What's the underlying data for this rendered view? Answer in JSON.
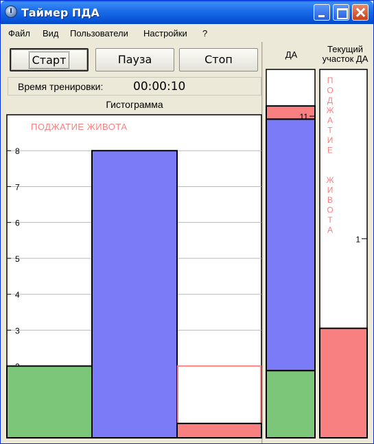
{
  "window": {
    "title": "Таймер ПДА"
  },
  "menu": [
    "Файл",
    "Вид",
    "Пользователи",
    "Настройки",
    "?"
  ],
  "controls": {
    "start": "Старт",
    "pause": "Пауза",
    "stop": "Стоп"
  },
  "timer": {
    "label": "Время тренировки:",
    "value": "00:00:10"
  },
  "histogram": {
    "title": "Гистограмма",
    "annotation": "ПОДЖАТИЕ ЖИВОТА"
  },
  "da_panel": {
    "title": "ДА"
  },
  "current_panel": {
    "title_line1": "Текущий",
    "title_line2": "участок ДА",
    "vertical_label": "ПОДЖАТИЕ  ЖИВОТА"
  },
  "colors": {
    "green": "#7bc679",
    "blue": "#7b7bf7",
    "red": "#f98080",
    "border": "#000000"
  },
  "chart_data": [
    {
      "type": "bar",
      "title": "Гистограмма",
      "annotation": "ПОДЖАТИЕ ЖИВОТА",
      "ylim": [
        0,
        9.0
      ],
      "yticks": [
        2,
        3,
        4,
        5,
        6,
        7,
        8
      ],
      "grid": true,
      "bars": [
        {
          "value": 2,
          "color": "green"
        },
        {
          "value": 8,
          "color": "blue"
        },
        {
          "value": 0.4,
          "color": "red",
          "outline_value": 2
        }
      ]
    },
    {
      "type": "bar",
      "title": "ДА",
      "stacked": true,
      "ylim": [
        0,
        12.6
      ],
      "yticks": [
        11
      ],
      "segments": [
        {
          "value": 2.3,
          "color": "green"
        },
        {
          "value": 8.6,
          "color": "blue"
        },
        {
          "value": 0.45,
          "color": "red"
        }
      ]
    },
    {
      "type": "bar",
      "title": "Текущий участок ДА",
      "ylim": [
        0,
        1.85
      ],
      "yticks": [
        1
      ],
      "segments": [
        {
          "value": 0.55,
          "color": "red"
        }
      ]
    }
  ]
}
